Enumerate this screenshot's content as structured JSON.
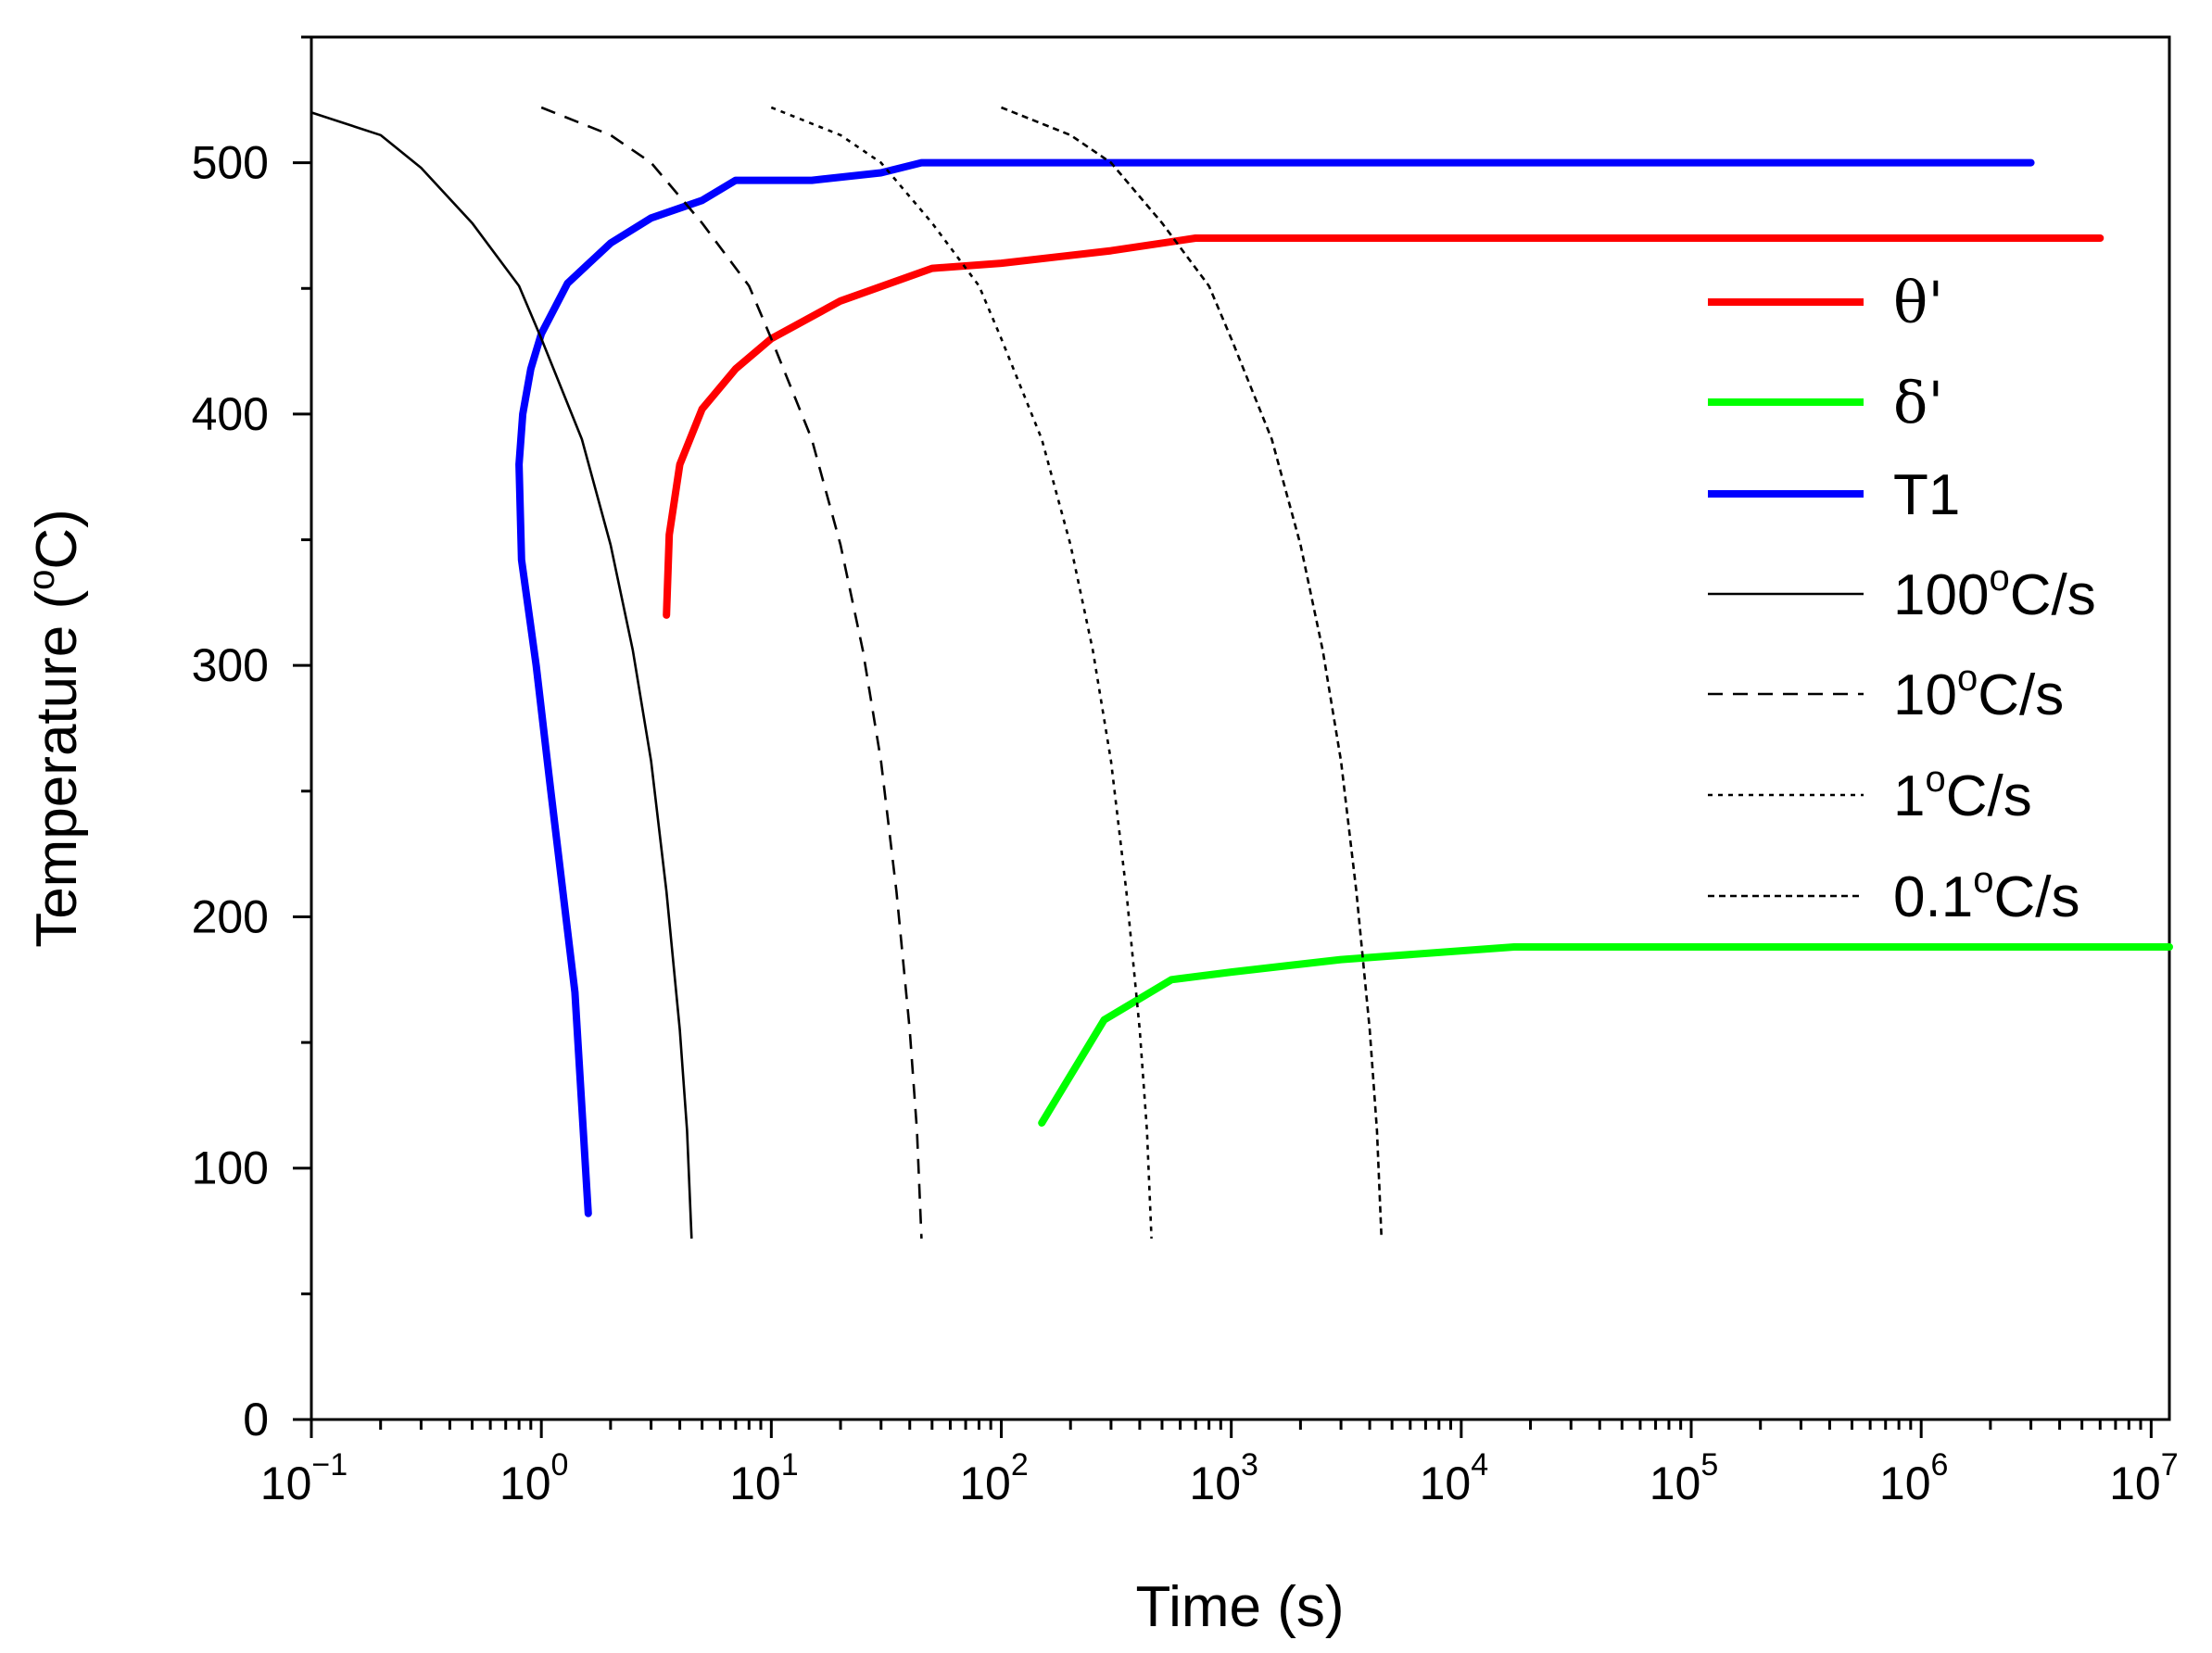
{
  "chart_data": {
    "type": "line",
    "title": "",
    "xlabel": "Time (s)",
    "ylabel": "Temperature (°C)",
    "ylabel_parts": {
      "pre": "Temperature (",
      "sup": "o",
      "post": "C)"
    },
    "xscale": "log",
    "xlim": [
      0.1,
      12000000
    ],
    "ylim": [
      0,
      550
    ],
    "x_ticks": [
      {
        "value": 0.1,
        "base": "10",
        "exp": "−1"
      },
      {
        "value": 1,
        "base": "10",
        "exp": "0"
      },
      {
        "value": 10,
        "base": "10",
        "exp": "1"
      },
      {
        "value": 100,
        "base": "10",
        "exp": "2"
      },
      {
        "value": 1000,
        "base": "10",
        "exp": "3"
      },
      {
        "value": 10000,
        "base": "10",
        "exp": "4"
      },
      {
        "value": 100000,
        "base": "10",
        "exp": "5"
      },
      {
        "value": 1000000,
        "base": "10",
        "exp": "6"
      },
      {
        "value": 10000000,
        "base": "10",
        "exp": "7"
      }
    ],
    "y_ticks": [
      0,
      100,
      200,
      300,
      400,
      500
    ],
    "y_tick_labels": [
      "0",
      "100",
      "200",
      "300",
      "400",
      "500"
    ],
    "legend_position": "right",
    "series": [
      {
        "name": "θ'",
        "legend": {
          "pre": "θ'",
          "sup": "",
          "post": ""
        },
        "color": "#ff0000",
        "style": "solid",
        "weight": "thick",
        "points": [
          [
            3.5,
            320
          ],
          [
            3.6,
            352
          ],
          [
            4.0,
            380
          ],
          [
            5.0,
            402
          ],
          [
            7.0,
            418
          ],
          [
            10,
            430
          ],
          [
            20,
            445
          ],
          [
            50,
            458
          ],
          [
            100,
            460
          ],
          [
            300,
            465
          ],
          [
            700,
            470
          ],
          [
            1000,
            470
          ],
          [
            10000,
            470
          ],
          [
            100000,
            470
          ],
          [
            1000000,
            470
          ],
          [
            6000000,
            470
          ]
        ]
      },
      {
        "name": "δ'",
        "legend": {
          "pre": "δ'",
          "sup": "",
          "post": ""
        },
        "color": "#00ff00",
        "style": "solid",
        "weight": "thick",
        "points": [
          [
            150,
            118
          ],
          [
            280,
            159
          ],
          [
            550,
            175
          ],
          [
            1000,
            178
          ],
          [
            3000,
            183
          ],
          [
            17000,
            188
          ],
          [
            100000,
            188
          ],
          [
            1000000,
            188
          ],
          [
            12000000,
            188
          ]
        ]
      },
      {
        "name": "T1",
        "legend": {
          "pre": "T1",
          "sup": "",
          "post": ""
        },
        "color": "#0000ff",
        "style": "solid",
        "weight": "thick",
        "points": [
          [
            1.6,
            82
          ],
          [
            1.4,
            170
          ],
          [
            1.1,
            250
          ],
          [
            0.95,
            300
          ],
          [
            0.82,
            342
          ],
          [
            0.8,
            380
          ],
          [
            0.83,
            400
          ],
          [
            0.9,
            418
          ],
          [
            1.0,
            432
          ],
          [
            1.3,
            452
          ],
          [
            2.0,
            468
          ],
          [
            3.0,
            478
          ],
          [
            5.0,
            485
          ],
          [
            7.0,
            493
          ],
          [
            15,
            493
          ],
          [
            30,
            496
          ],
          [
            45,
            500
          ],
          [
            100,
            500
          ],
          [
            1000,
            500
          ],
          [
            100000,
            500
          ],
          [
            3000000,
            500
          ]
        ]
      },
      {
        "name": "100°C/s",
        "legend": {
          "pre": "100",
          "sup": "o",
          "post": "C/s"
        },
        "color": "#000000",
        "style": "solid",
        "weight": "thin",
        "points": [
          [
            0.1,
            520
          ],
          [
            0.2,
            511
          ],
          [
            0.3,
            498
          ],
          [
            0.5,
            476
          ],
          [
            0.8,
            451
          ],
          [
            1.0,
            430
          ],
          [
            1.5,
            390
          ],
          [
            2.0,
            348
          ],
          [
            2.5,
            306
          ],
          [
            3.0,
            262
          ],
          [
            3.5,
            210
          ],
          [
            4.0,
            155
          ],
          [
            4.3,
            115
          ],
          [
            4.5,
            72
          ]
        ]
      },
      {
        "name": "10°C/s",
        "legend": {
          "pre": "10",
          "sup": "o",
          "post": "C/s"
        },
        "color": "#000000",
        "style": "dashed",
        "weight": "thin",
        "points": [
          [
            1.0,
            522
          ],
          [
            2.0,
            511
          ],
          [
            3.0,
            500
          ],
          [
            5.0,
            476
          ],
          [
            8.0,
            451
          ],
          [
            10,
            430
          ],
          [
            15,
            390
          ],
          [
            20,
            348
          ],
          [
            25,
            306
          ],
          [
            30,
            262
          ],
          [
            35,
            210
          ],
          [
            40,
            155
          ],
          [
            43,
            115
          ],
          [
            45,
            72
          ]
        ]
      },
      {
        "name": "1°C/s",
        "legend": {
          "pre": "1",
          "sup": "o",
          "post": "C/s"
        },
        "color": "#000000",
        "style": "dotted",
        "weight": "thin",
        "points": [
          [
            10,
            522
          ],
          [
            20,
            511
          ],
          [
            30,
            500
          ],
          [
            50,
            476
          ],
          [
            80,
            451
          ],
          [
            100,
            430
          ],
          [
            150,
            390
          ],
          [
            200,
            348
          ],
          [
            250,
            306
          ],
          [
            300,
            262
          ],
          [
            350,
            210
          ],
          [
            400,
            155
          ],
          [
            430,
            115
          ],
          [
            450,
            72
          ]
        ]
      },
      {
        "name": "0.1°C/s",
        "legend": {
          "pre": "0.1",
          "sup": "o",
          "post": "C/s"
        },
        "color": "#000000",
        "style": "short-dashed",
        "weight": "thin",
        "points": [
          [
            100,
            522
          ],
          [
            200,
            511
          ],
          [
            300,
            500
          ],
          [
            500,
            476
          ],
          [
            800,
            451
          ],
          [
            1000,
            430
          ],
          [
            1500,
            390
          ],
          [
            2000,
            348
          ],
          [
            2500,
            306
          ],
          [
            3000,
            262
          ],
          [
            3500,
            210
          ],
          [
            4000,
            155
          ],
          [
            4300,
            115
          ],
          [
            4500,
            72
          ]
        ]
      }
    ]
  }
}
